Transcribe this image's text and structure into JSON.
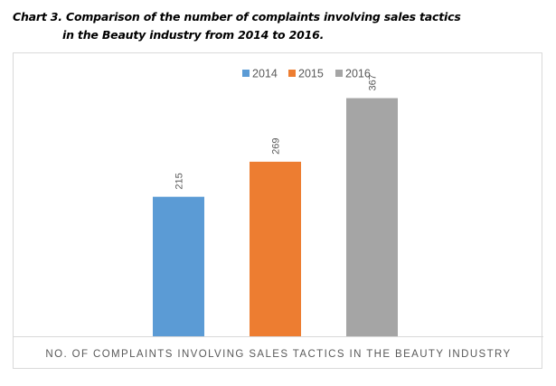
{
  "caption": {
    "line1": "Chart 3. Comparison of the number of complaints involving sales tactics",
    "line2": "in the Beauty industry from 2014 to 2016."
  },
  "colors": {
    "s2014": "#5b9bd5",
    "s2015": "#ed7d31",
    "s2016": "#a5a5a5",
    "axis": "#d9d9d9",
    "text": "#595959"
  },
  "chart_data": {
    "type": "bar",
    "title": "",
    "categories": [
      "NO. OF COMPLAINTS INVOLVING SALES TACTICS IN THE BEAUTY INDUSTRY"
    ],
    "xlabel": "NO. OF COMPLAINTS INVOLVING SALES TACTICS IN THE BEAUTY INDUSTRY",
    "ylabel": "",
    "ylim": [
      0,
      400
    ],
    "grid": false,
    "legend": "top-center",
    "series": [
      {
        "name": "2014",
        "values": [
          215
        ],
        "color": "#5b9bd5"
      },
      {
        "name": "2015",
        "values": [
          269
        ],
        "color": "#ed7d31"
      },
      {
        "name": "2016",
        "values": [
          367
        ],
        "color": "#a5a5a5"
      }
    ]
  }
}
